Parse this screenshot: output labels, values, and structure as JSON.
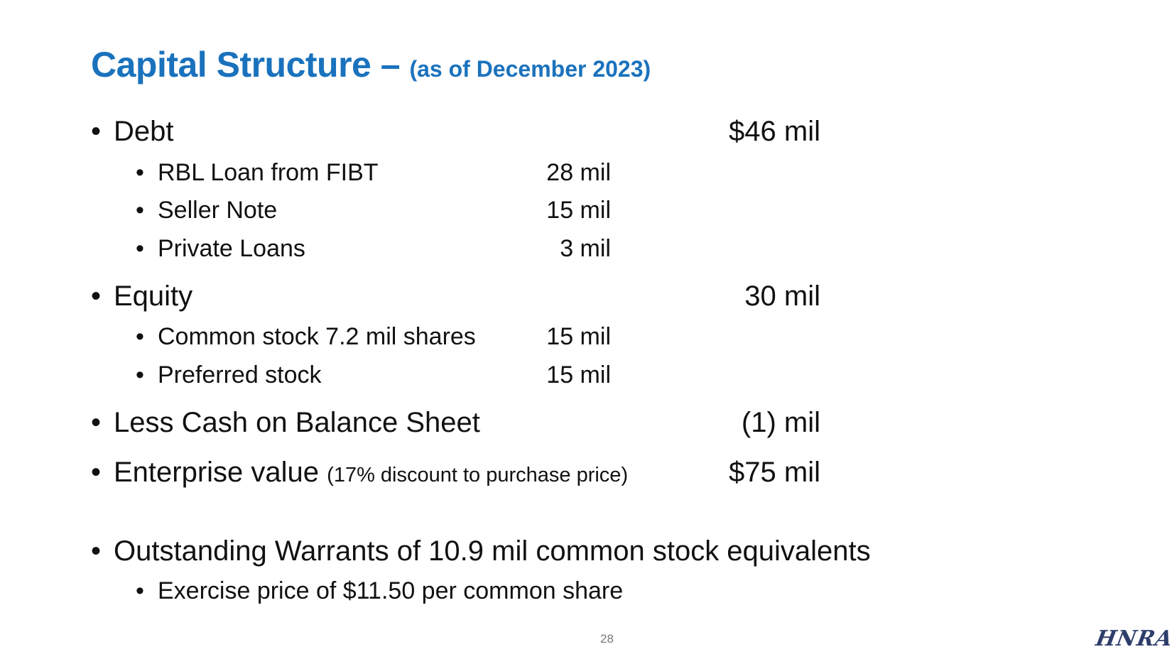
{
  "title": {
    "main": "Capital Structure – ",
    "sub": "(as of December 2023)"
  },
  "bullet_char": "•",
  "items": {
    "debt": {
      "label": "Debt",
      "value": "$46 mil"
    },
    "rbl": {
      "label": "RBL Loan from FIBT",
      "value": "28 mil"
    },
    "seller": {
      "label": "Seller Note",
      "value": "15 mil"
    },
    "private": {
      "label": "Private Loans",
      "value": "3 mil"
    },
    "equity": {
      "label": "Equity",
      "value": "30 mil"
    },
    "common": {
      "label": "Common stock 7.2 mil shares",
      "value": "15 mil"
    },
    "preferred": {
      "label": "Preferred stock",
      "value": "15 mil"
    },
    "cash": {
      "label": "Less Cash on Balance Sheet",
      "value": "(1) mil"
    },
    "ev": {
      "label": "Enterprise value ",
      "note": "(17% discount to purchase price)",
      "value": "$75 mil"
    },
    "warrants": {
      "label": "Outstanding Warrants of 10.9 mil common stock equivalents"
    },
    "exercise": {
      "label": "Exercise price of $11.50 per common share"
    }
  },
  "page_number": "28",
  "logo_text": "HNRA"
}
